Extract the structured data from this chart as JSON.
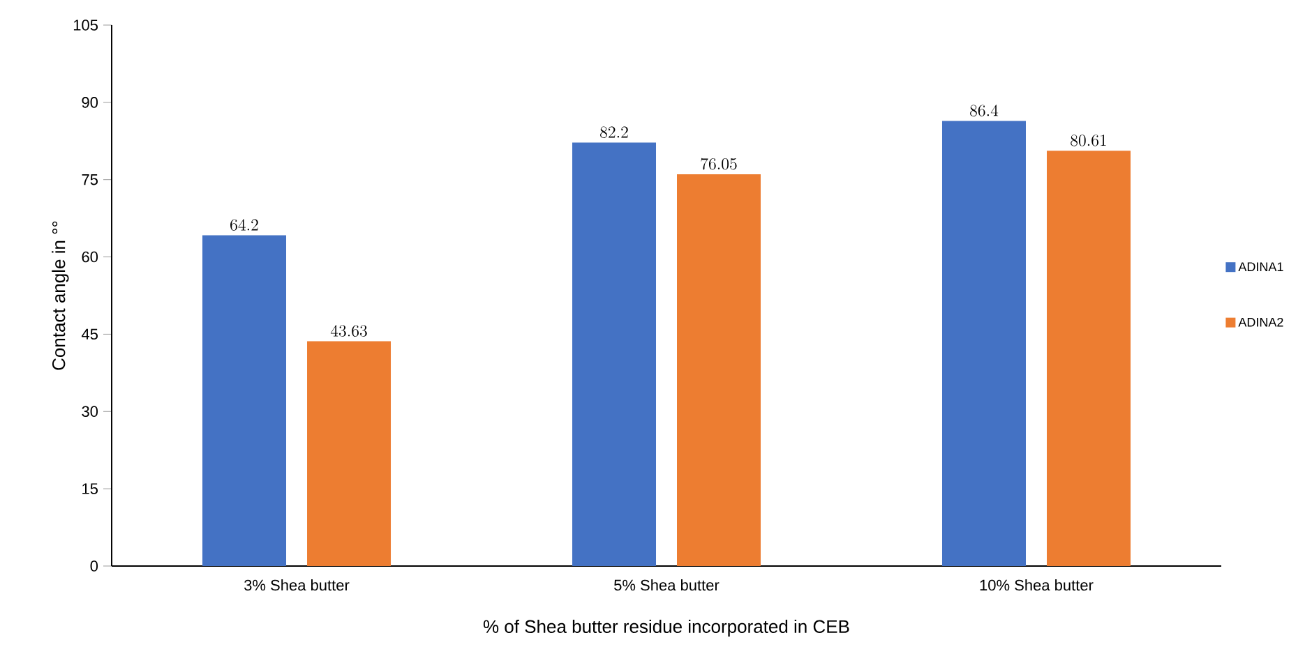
{
  "chart_data": {
    "type": "bar",
    "xlabel": "% of Shea butter residue incorporated  in CEB",
    "ylabel": "Contact angle in °°",
    "categories": [
      "3% Shea butter",
      "5% Shea butter",
      "10% Shea butter"
    ],
    "series": [
      {
        "name": "ADINA1",
        "color": "#4472c4",
        "values": [
          64.2,
          82.2,
          86.4
        ]
      },
      {
        "name": "ADINA2",
        "color": "#ed7d31",
        "values": [
          43.63,
          76.05,
          80.61
        ]
      }
    ],
    "ylim": [
      0,
      105
    ],
    "yticks": [
      0,
      15,
      30,
      45,
      60,
      75,
      90,
      105
    ],
    "data_labels": true,
    "legend": "right",
    "grid": false
  }
}
